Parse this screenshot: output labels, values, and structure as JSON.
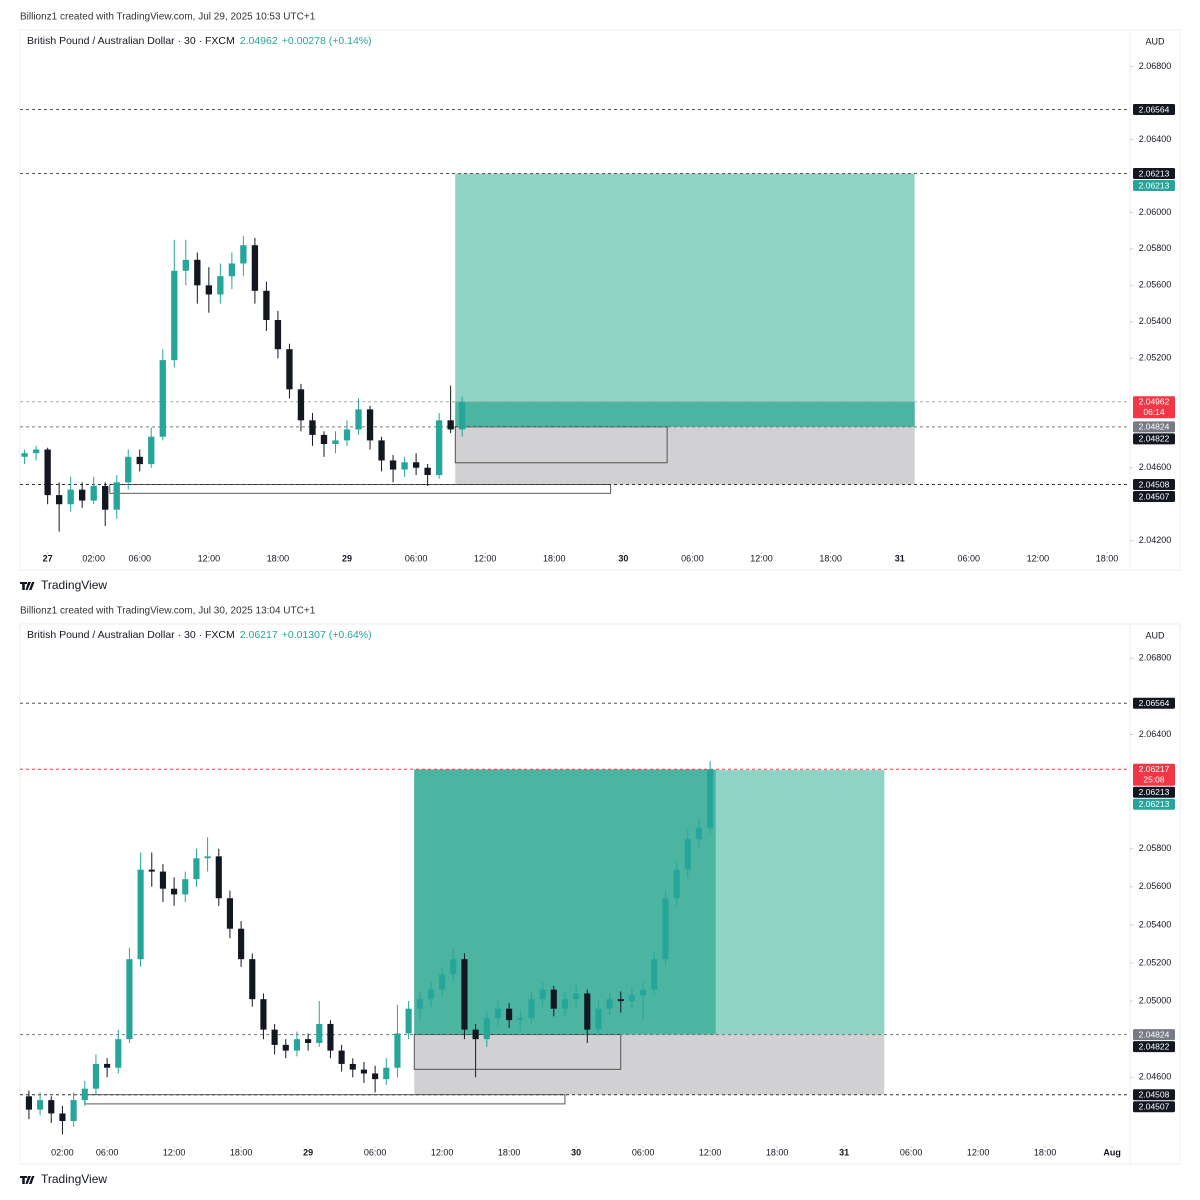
{
  "chart_data": [
    {
      "type": "candlestick",
      "attribution": "Billionz1 created with TradingView.com, Jul 29, 2025 10:53 UTC+1",
      "title": "British Pound / Australian Dollar · 30 · FXCM",
      "last_price": 2.04962,
      "change": "+0.00278 (+0.14%)",
      "currency": "AUD",
      "footer": "TradingView",
      "up_color": "#26a69a",
      "down_color": "#131722",
      "xlim": [
        -4.4,
        92
      ],
      "ylim": [
        2.0416,
        2.07
      ],
      "xticks": [
        {
          "value": -2,
          "label": "27"
        },
        {
          "value": 2,
          "label": "02:00"
        },
        {
          "value": 6,
          "label": "06:00"
        },
        {
          "value": 12,
          "label": "12:00"
        },
        {
          "value": 18,
          "label": "18:00"
        },
        {
          "value": 24,
          "label": "29"
        },
        {
          "value": 30,
          "label": "06:00"
        },
        {
          "value": 36,
          "label": "12:00"
        },
        {
          "value": 42,
          "label": "18:00"
        },
        {
          "value": 48,
          "label": "30"
        },
        {
          "value": 54,
          "label": "06:00"
        },
        {
          "value": 60,
          "label": "12:00"
        },
        {
          "value": 66,
          "label": "18:00"
        },
        {
          "value": 72,
          "label": "31"
        },
        {
          "value": 78,
          "label": "06:00"
        },
        {
          "value": 84,
          "label": "12:00"
        },
        {
          "value": 90,
          "label": "18:00"
        }
      ],
      "yticks": [
        {
          "value": 2.068,
          "label": "2.06800"
        },
        {
          "value": 2.064,
          "label": "2.06400"
        },
        {
          "value": 2.06,
          "label": "2.06000"
        },
        {
          "value": 2.058,
          "label": "2.05800"
        },
        {
          "value": 2.056,
          "label": "2.05600"
        },
        {
          "value": 2.054,
          "label": "2.05400"
        },
        {
          "value": 2.052,
          "label": "2.05200"
        },
        {
          "value": 2.046,
          "label": "2.04600"
        },
        {
          "value": 2.042,
          "label": "2.04200"
        }
      ],
      "x": [
        -4,
        -3,
        -2,
        -1,
        0,
        1,
        2,
        3,
        4,
        5,
        6,
        7,
        8,
        9,
        10,
        11,
        12,
        13,
        14,
        15,
        16,
        17,
        18,
        19,
        20,
        21,
        22,
        23,
        24,
        25,
        26,
        27,
        28,
        29,
        30,
        31,
        32,
        33,
        34
      ],
      "candles": [
        [
          2.0466,
          2.047,
          2.0462,
          2.0468
        ],
        [
          2.0468,
          2.0472,
          2.0464,
          2.047
        ],
        [
          2.047,
          2.0471,
          2.044,
          2.0445
        ],
        [
          2.0445,
          2.0452,
          2.0425,
          2.044
        ],
        [
          2.044,
          2.0455,
          2.0436,
          2.0448
        ],
        [
          2.0448,
          2.0452,
          2.0438,
          2.0442
        ],
        [
          2.0442,
          2.0455,
          2.044,
          2.045
        ],
        [
          2.045,
          2.0452,
          2.0428,
          2.0437
        ],
        [
          2.0437,
          2.0456,
          2.0432,
          2.0452
        ],
        [
          2.0452,
          2.047,
          2.0448,
          2.0466
        ],
        [
          2.0466,
          2.047,
          2.0458,
          2.0462
        ],
        [
          2.0462,
          2.0482,
          2.046,
          2.0477
        ],
        [
          2.0477,
          2.0525,
          2.0475,
          2.0519
        ],
        [
          2.0519,
          2.0585,
          2.0515,
          2.0568
        ],
        [
          2.0568,
          2.0585,
          2.056,
          2.0574
        ],
        [
          2.0574,
          2.0578,
          2.055,
          2.056
        ],
        [
          2.056,
          2.057,
          2.0545,
          2.0555
        ],
        [
          2.0555,
          2.0572,
          2.055,
          2.0565
        ],
        [
          2.0565,
          2.0578,
          2.0558,
          2.0572
        ],
        [
          2.0572,
          2.0587,
          2.0565,
          2.0582
        ],
        [
          2.0582,
          2.0586,
          2.055,
          2.0557
        ],
        [
          2.0557,
          2.0562,
          2.0535,
          2.0541
        ],
        [
          2.0541,
          2.0546,
          2.052,
          2.0525
        ],
        [
          2.0525,
          2.0528,
          2.0498,
          2.0503
        ],
        [
          2.0503,
          2.0506,
          2.048,
          2.0486
        ],
        [
          2.0486,
          2.049,
          2.0472,
          2.0478
        ],
        [
          2.0478,
          2.048,
          2.0466,
          2.0473
        ],
        [
          2.0473,
          2.048,
          2.0468,
          2.0475
        ],
        [
          2.0475,
          2.0486,
          2.0472,
          2.0481
        ],
        [
          2.0481,
          2.0498,
          2.0478,
          2.0492
        ],
        [
          2.0492,
          2.0494,
          2.047,
          2.0475
        ],
        [
          2.0475,
          2.0477,
          2.0458,
          2.0464
        ],
        [
          2.0464,
          2.0467,
          2.0452,
          2.0459
        ],
        [
          2.0459,
          2.0466,
          2.0455,
          2.0463
        ],
        [
          2.0463,
          2.0468,
          2.0456,
          2.046
        ],
        [
          2.046,
          2.0462,
          2.045,
          2.0456
        ],
        [
          2.0456,
          2.049,
          2.0454,
          2.0486
        ],
        [
          2.0486,
          2.0505,
          2.0479,
          2.0481
        ],
        [
          2.0481,
          2.0499,
          2.0477,
          2.04962
        ]
      ],
      "lines": [
        {
          "value": 2.06564,
          "color": "#555555"
        },
        {
          "value": 2.06213,
          "color": "#555555"
        },
        {
          "value": 2.04962,
          "color": "#aaaaaa"
        },
        {
          "value": 2.04824,
          "color": "#777777"
        },
        {
          "value": 2.04508,
          "color": "#333333"
        }
      ],
      "position": {
        "x_start": 33.4,
        "x_end": 73.3,
        "entry": 2.04824,
        "target": 2.06213,
        "stop": 2.04508,
        "realized_x_end": 73.3,
        "realized_price": 2.04962
      },
      "rectangles": [
        {
          "x": [
            33.4,
            51.8
          ],
          "y": [
            2.04627,
            2.04824
          ]
        },
        {
          "x": [
            3.4,
            46.9
          ],
          "y": [
            2.0446,
            2.04508
          ]
        }
      ],
      "price_labels": [
        {
          "value": 2.06564,
          "color": "#131722"
        },
        {
          "value": 2.06213,
          "color": "#131722"
        },
        {
          "value": 2.06213,
          "color": "#26a69a"
        },
        {
          "value": 2.04962,
          "countdown": "06:14",
          "color": "#f23645"
        },
        {
          "value": 2.04824,
          "color": "#787b86"
        },
        {
          "value": 2.04822,
          "color": "#131722"
        },
        {
          "value": 2.04508,
          "color": "#131722"
        },
        {
          "value": 2.04507,
          "color": "#131722"
        }
      ]
    },
    {
      "type": "candlestick",
      "attribution": "Billionz1 created with TradingView.com, Jul 30, 2025 13:04 UTC+1",
      "title": "British Pound / Australian Dollar · 30 · FXCM",
      "last_price": 2.06217,
      "change": "+0.01307 (+0.64%)",
      "currency": "AUD",
      "footer": "TradingView",
      "up_color": "#26a69a",
      "down_color": "#131722",
      "xlim": [
        -1.8,
        97.6
      ],
      "ylim": [
        2.0426,
        2.0698
      ],
      "xticks": [
        {
          "value": 2,
          "label": "02:00"
        },
        {
          "value": 6,
          "label": "06:00"
        },
        {
          "value": 12,
          "label": "12:00"
        },
        {
          "value": 18,
          "label": "18:00"
        },
        {
          "value": 24,
          "label": "29"
        },
        {
          "value": 30,
          "label": "06:00"
        },
        {
          "value": 36,
          "label": "12:00"
        },
        {
          "value": 42,
          "label": "18:00"
        },
        {
          "value": 48,
          "label": "30"
        },
        {
          "value": 54,
          "label": "06:00"
        },
        {
          "value": 60,
          "label": "12:00"
        },
        {
          "value": 66,
          "label": "18:00"
        },
        {
          "value": 72,
          "label": "31"
        },
        {
          "value": 78,
          "label": "06:00"
        },
        {
          "value": 84,
          "label": "12:00"
        },
        {
          "value": 90,
          "label": "18:00"
        },
        {
          "value": 96,
          "label": "Aug"
        }
      ],
      "yticks": [
        {
          "value": 2.068,
          "label": "2.06800"
        },
        {
          "value": 2.064,
          "label": "2.06400"
        },
        {
          "value": 2.058,
          "label": "2.05800"
        },
        {
          "value": 2.056,
          "label": "2.05600"
        },
        {
          "value": 2.054,
          "label": "2.05400"
        },
        {
          "value": 2.052,
          "label": "2.05200"
        },
        {
          "value": 2.05,
          "label": "2.05000"
        },
        {
          "value": 2.046,
          "label": "2.04600"
        }
      ],
      "x": [
        -1,
        0,
        1,
        2,
        3,
        4,
        5,
        6,
        7,
        8,
        9,
        10,
        11,
        12,
        13,
        14,
        15,
        16,
        17,
        18,
        19,
        20,
        21,
        22,
        23,
        24,
        25,
        26,
        27,
        28,
        29,
        30,
        31,
        32,
        33,
        34,
        35,
        36,
        37,
        38,
        39,
        40,
        41,
        42,
        43,
        44,
        45,
        46,
        47,
        48,
        49,
        50,
        51,
        52,
        53,
        54,
        55,
        56,
        57,
        58,
        59,
        60
      ],
      "candles": [
        [
          2.045,
          2.0453,
          2.0438,
          2.0443
        ],
        [
          2.0443,
          2.0452,
          2.044,
          2.0448
        ],
        [
          2.0448,
          2.045,
          2.0436,
          2.0441
        ],
        [
          2.0441,
          2.0445,
          2.043,
          2.0437
        ],
        [
          2.0437,
          2.0452,
          2.0434,
          2.0448
        ],
        [
          2.0448,
          2.0458,
          2.0445,
          2.0454
        ],
        [
          2.0454,
          2.0472,
          2.0451,
          2.0467
        ],
        [
          2.0467,
          2.047,
          2.046,
          2.0465
        ],
        [
          2.0465,
          2.0485,
          2.0462,
          2.048
        ],
        [
          2.048,
          2.0528,
          2.0478,
          2.0522
        ],
        [
          2.0522,
          2.0578,
          2.0518,
          2.0569
        ],
        [
          2.0569,
          2.0578,
          2.056,
          2.0568
        ],
        [
          2.0568,
          2.0572,
          2.0552,
          2.0559
        ],
        [
          2.0559,
          2.0565,
          2.055,
          2.0556
        ],
        [
          2.0556,
          2.0568,
          2.0552,
          2.0564
        ],
        [
          2.0564,
          2.058,
          2.056,
          2.0575
        ],
        [
          2.0575,
          2.0586,
          2.0568,
          2.0576
        ],
        [
          2.0576,
          2.058,
          2.055,
          2.0554
        ],
        [
          2.0554,
          2.0558,
          2.0533,
          2.0538
        ],
        [
          2.0538,
          2.0542,
          2.0518,
          2.0522
        ],
        [
          2.0522,
          2.0525,
          2.0497,
          2.0501
        ],
        [
          2.0501,
          2.0504,
          2.048,
          2.0485
        ],
        [
          2.0485,
          2.0488,
          2.0472,
          2.0477
        ],
        [
          2.0477,
          2.048,
          2.047,
          2.0474
        ],
        [
          2.0474,
          2.0484,
          2.0471,
          2.048
        ],
        [
          2.048,
          2.0483,
          2.0474,
          2.0478
        ],
        [
          2.0478,
          2.05,
          2.0476,
          2.0488
        ],
        [
          2.0488,
          2.049,
          2.047,
          2.0474
        ],
        [
          2.0474,
          2.0477,
          2.0463,
          2.0467
        ],
        [
          2.0467,
          2.047,
          2.046,
          2.0464
        ],
        [
          2.0464,
          2.0468,
          2.0457,
          2.0462
        ],
        [
          2.0462,
          2.0466,
          2.0452,
          2.0459
        ],
        [
          2.0459,
          2.047,
          2.0456,
          2.0465
        ],
        [
          2.0465,
          2.0498,
          2.046,
          2.0483
        ],
        [
          2.0483,
          2.05,
          2.048,
          2.0496
        ],
        [
          2.0496,
          2.0505,
          2.049,
          2.0501
        ],
        [
          2.0501,
          2.051,
          2.0497,
          2.0506
        ],
        [
          2.0506,
          2.0518,
          2.0502,
          2.0514
        ],
        [
          2.0514,
          2.0528,
          2.051,
          2.0522
        ],
        [
          2.0522,
          2.0525,
          2.048,
          2.0485
        ],
        [
          2.0485,
          2.0488,
          2.046,
          2.048
        ],
        [
          2.048,
          2.0495,
          2.0476,
          2.0491
        ],
        [
          2.0491,
          2.05,
          2.0487,
          2.0496
        ],
        [
          2.0496,
          2.0499,
          2.0486,
          2.049
        ],
        [
          2.049,
          2.0495,
          2.0484,
          2.0491
        ],
        [
          2.0491,
          2.0505,
          2.0488,
          2.0501
        ],
        [
          2.0501,
          2.051,
          2.0497,
          2.0506
        ],
        [
          2.0506,
          2.0508,
          2.0492,
          2.0496
        ],
        [
          2.0496,
          2.0505,
          2.0492,
          2.0501
        ],
        [
          2.0501,
          2.0508,
          2.0497,
          2.0504
        ],
        [
          2.0504,
          2.0506,
          2.0478,
          2.0485
        ],
        [
          2.0485,
          2.05,
          2.0482,
          2.0496
        ],
        [
          2.0496,
          2.0504,
          2.0493,
          2.0501
        ],
        [
          2.0501,
          2.0505,
          2.0494,
          2.05
        ],
        [
          2.05,
          2.0507,
          2.0496,
          2.0503
        ],
        [
          2.0503,
          2.051,
          2.049,
          2.0506
        ],
        [
          2.0506,
          2.0526,
          2.0503,
          2.0522
        ],
        [
          2.0522,
          2.0558,
          2.0519,
          2.0554
        ],
        [
          2.0554,
          2.0573,
          2.055,
          2.0569
        ],
        [
          2.0569,
          2.059,
          2.0565,
          2.0585
        ],
        [
          2.0585,
          2.0596,
          2.058,
          2.0591
        ],
        [
          2.0591,
          2.0626,
          2.0588,
          2.06217
        ]
      ],
      "lines": [
        {
          "value": 2.06564,
          "color": "#555555"
        },
        {
          "value": 2.06217,
          "color": "#f23645"
        },
        {
          "value": 2.04824,
          "color": "#777777"
        },
        {
          "value": 2.04508,
          "color": "#333333"
        }
      ],
      "position": {
        "x_start": 33.5,
        "x_end": 75.6,
        "entry": 2.04824,
        "target": 2.06213,
        "stop": 2.04508,
        "realized_x_end": 60.5,
        "realized_price": 2.06217
      },
      "rectangles": [
        {
          "x": [
            33.5,
            52
          ],
          "y": [
            2.04642,
            2.04824
          ]
        },
        {
          "x": [
            4,
            47
          ],
          "y": [
            2.0446,
            2.04508
          ]
        }
      ],
      "price_labels": [
        {
          "value": 2.06564,
          "color": "#131722"
        },
        {
          "value": 2.06217,
          "countdown": "25:08",
          "color": "#f23645"
        },
        {
          "value": 2.06213,
          "color": "#131722"
        },
        {
          "value": 2.06213,
          "color": "#26a69a"
        },
        {
          "value": 2.04824,
          "color": "#787b86"
        },
        {
          "value": 2.04822,
          "color": "#131722"
        },
        {
          "value": 2.04508,
          "color": "#131722"
        },
        {
          "value": 2.04507,
          "color": "#131722"
        }
      ]
    }
  ]
}
